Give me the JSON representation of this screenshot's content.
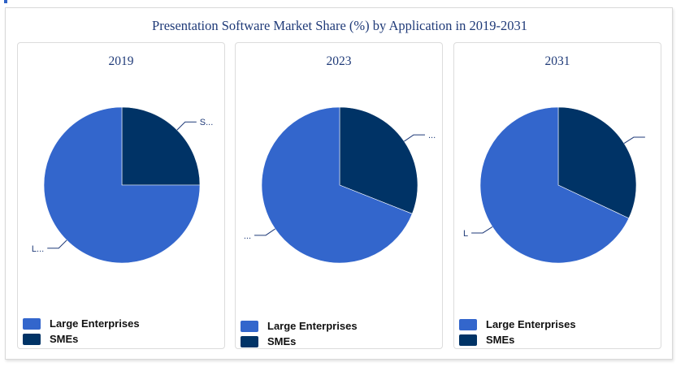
{
  "title": "Presentation Software Market Share (%) by Application in 2019-2031",
  "colors": {
    "large": "#3366cc",
    "smes": "#003366",
    "label_line": "#1f3a78"
  },
  "chart_data": [
    {
      "type": "pie",
      "title": "2019",
      "series": [
        {
          "name": "Large Enterprises",
          "value": 75,
          "slice_label": "L..."
        },
        {
          "name": "SMEs",
          "value": 25,
          "slice_label": "S..."
        }
      ],
      "legend": [
        "Large Enterprises",
        "SMEs"
      ]
    },
    {
      "type": "pie",
      "title": "2023",
      "series": [
        {
          "name": "Large Enterprises",
          "value": 69,
          "slice_label": "..."
        },
        {
          "name": "SMEs",
          "value": 31,
          "slice_label": "..."
        }
      ],
      "legend": [
        "Large Enterprises",
        "SMEs"
      ]
    },
    {
      "type": "pie",
      "title": "2031",
      "series": [
        {
          "name": "Large Enterprises",
          "value": 68,
          "slice_label": "L"
        },
        {
          "name": "SMEs",
          "value": 32,
          "slice_label": ""
        }
      ],
      "legend": [
        "Large Enterprises",
        "SMEs"
      ]
    }
  ]
}
